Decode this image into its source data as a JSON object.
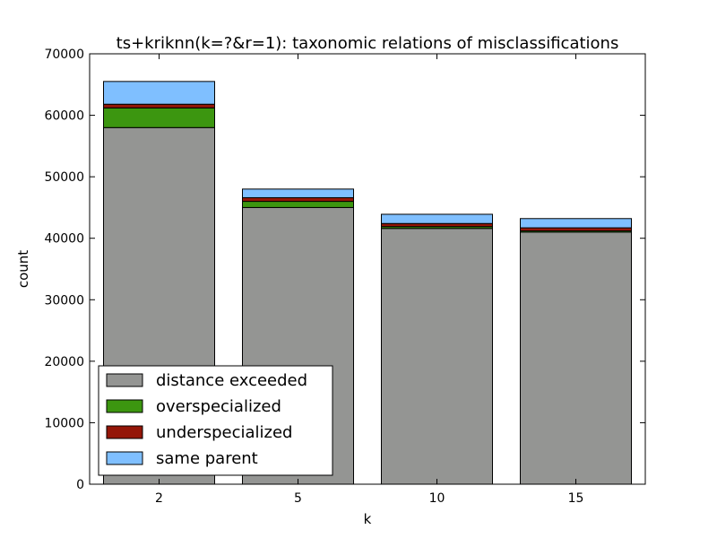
{
  "chart_data": {
    "type": "bar",
    "stacked": true,
    "title": "ts+kriknn(k=?&r=1): taxonomic relations of misclassifications",
    "xlabel": "k",
    "ylabel": "count",
    "categories": [
      "2",
      "5",
      "10",
      "15"
    ],
    "ylim": [
      0,
      70000
    ],
    "yticks": [
      0,
      10000,
      20000,
      30000,
      40000,
      50000,
      60000,
      70000
    ],
    "grid": false,
    "legend_position": "lower-left",
    "series": [
      {
        "name": "distance exceeded",
        "color": "#949593",
        "values": [
          58000,
          45000,
          41600,
          41000
        ]
      },
      {
        "name": "overspecialized",
        "color": "#3c9610",
        "values": [
          3200,
          1000,
          300,
          200
        ]
      },
      {
        "name": "underspecialized",
        "color": "#941608",
        "values": [
          600,
          600,
          500,
          500
        ]
      },
      {
        "name": "same parent",
        "color": "#7fbfff",
        "values": [
          3700,
          1400,
          1500,
          1500
        ]
      }
    ]
  }
}
